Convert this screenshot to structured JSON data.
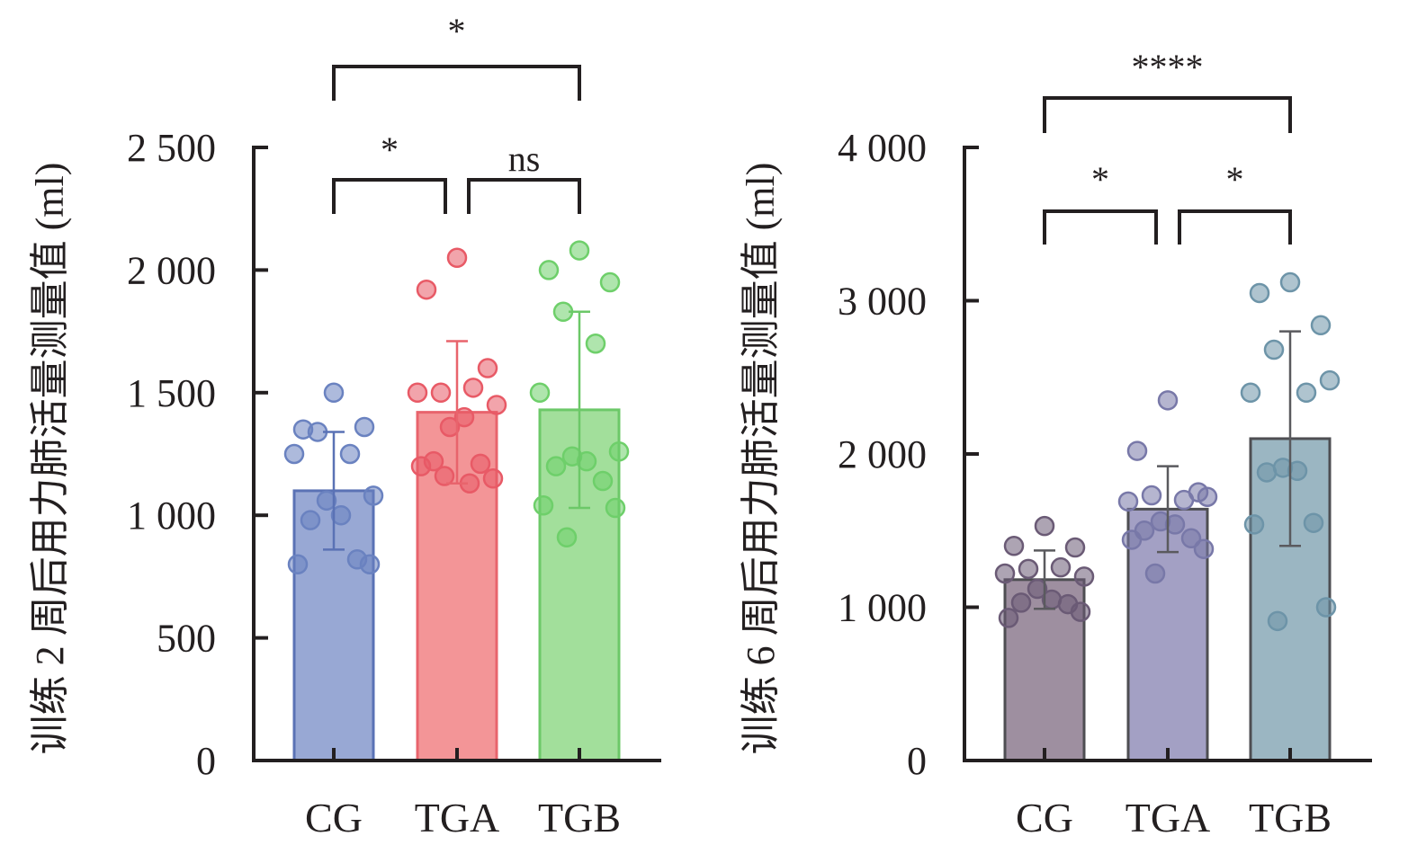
{
  "chart_data": [
    {
      "type": "bar",
      "ylabel": "训练 2 周后用力肺活量测量值 (ml)",
      "categories": [
        "CG",
        "TGA",
        "TGB"
      ],
      "ylim": [
        0,
        2500
      ],
      "yticks": [
        0,
        500,
        1000,
        1500,
        2000,
        2500
      ],
      "ytick_labels": [
        "0",
        "500",
        "1 000",
        "1 500",
        "2 000",
        "2 500"
      ],
      "values": [
        1100,
        1420,
        1430
      ],
      "error_sd": [
        240,
        290,
        400
      ],
      "colors": {
        "fill": [
          "#98a8d4",
          "#f39597",
          "#a2df9b"
        ],
        "stroke": [
          "#5a72b5",
          "#e8646c",
          "#6cc868"
        ],
        "point": [
          "#6a82c0",
          "#e85a66",
          "#6ecf6a"
        ]
      },
      "points": [
        [
          1500,
          1350,
          1360,
          1340,
          1250,
          1250,
          1080,
          1060,
          1000,
          980,
          820,
          800,
          800
        ],
        [
          2050,
          1920,
          1600,
          1500,
          1520,
          1500,
          1450,
          1360,
          1400,
          1220,
          1210,
          1200,
          1150,
          1160,
          1130
        ],
        [
          2080,
          2000,
          1950,
          1830,
          1700,
          1500,
          1260,
          1240,
          1220,
          1200,
          1140,
          1040,
          1030,
          910
        ]
      ],
      "significance": [
        {
          "from": 0,
          "to": 1,
          "label": "*"
        },
        {
          "from": 1,
          "to": 2,
          "label": "ns"
        },
        {
          "from": 0,
          "to": 2,
          "label": "*"
        }
      ]
    },
    {
      "type": "bar",
      "ylabel": "训练 6 周后用力肺活量测量值 (ml)",
      "categories": [
        "CG",
        "TGA",
        "TGB"
      ],
      "ylim": [
        0,
        4000
      ],
      "yticks": [
        0,
        1000,
        2000,
        3000,
        4000
      ],
      "ytick_labels": [
        "0",
        "1 000",
        "2 000",
        "3 000",
        "4 000"
      ],
      "values": [
        1180,
        1640,
        2100
      ],
      "error_sd": [
        190,
        280,
        700
      ],
      "colors": {
        "fill": [
          "#9e8fa0",
          "#a3a0c4",
          "#9bb6c2"
        ],
        "stroke": [
          "#4e4e52",
          "#4e4e52",
          "#4e4e52"
        ],
        "point": [
          "#6a5a75",
          "#7878a8",
          "#6d94a8"
        ]
      },
      "points": [
        [
          1530,
          1400,
          1390,
          1250,
          1260,
          1220,
          1200,
          1120,
          1050,
          1030,
          1020,
          930,
          970
        ],
        [
          2350,
          2020,
          1750,
          1730,
          1700,
          1690,
          1720,
          1560,
          1540,
          1500,
          1450,
          1440,
          1380,
          1220
        ],
        [
          3120,
          3050,
          2840,
          2680,
          2400,
          2400,
          2480,
          1910,
          1890,
          1880,
          1550,
          1540,
          1000,
          910
        ]
      ],
      "significance": [
        {
          "from": 0,
          "to": 1,
          "label": "*"
        },
        {
          "from": 1,
          "to": 2,
          "label": "*"
        },
        {
          "from": 0,
          "to": 2,
          "label": "****"
        }
      ]
    }
  ]
}
